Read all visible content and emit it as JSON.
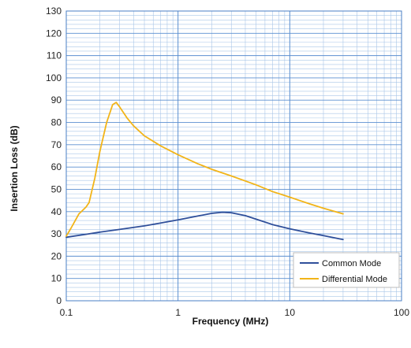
{
  "chart_data": {
    "type": "line",
    "title": "",
    "xlabel": "Frequency (MHz)",
    "ylabel": "Insertion Loss (dB)",
    "x_scale": "log",
    "xlim": [
      0.1,
      100
    ],
    "ylim": [
      0,
      130
    ],
    "x_ticks": [
      "0.1",
      "1",
      "10",
      "100"
    ],
    "y_ticks": [
      "0",
      "10",
      "20",
      "30",
      "40",
      "50",
      "60",
      "70",
      "80",
      "90",
      "100",
      "110",
      "120",
      "130"
    ],
    "grid": true,
    "legend_position": "bottom-right",
    "colors": {
      "grid_major": "#5b8fd0",
      "grid_minor": "#a9c6e8"
    },
    "series": [
      {
        "name": "Common Mode",
        "color": "#2f4f9a",
        "points": [
          [
            0.1,
            28.5
          ],
          [
            0.15,
            29.8
          ],
          [
            0.2,
            30.8
          ],
          [
            0.3,
            32.0
          ],
          [
            0.5,
            33.6
          ],
          [
            0.7,
            34.9
          ],
          [
            1.0,
            36.3
          ],
          [
            1.5,
            38.0
          ],
          [
            2.0,
            39.2
          ],
          [
            2.5,
            39.7
          ],
          [
            3.0,
            39.5
          ],
          [
            4.0,
            38.2
          ],
          [
            5.0,
            36.6
          ],
          [
            7.0,
            34.2
          ],
          [
            10.0,
            32.3
          ],
          [
            15.0,
            30.4
          ],
          [
            20.0,
            29.2
          ],
          [
            30.0,
            27.5
          ]
        ]
      },
      {
        "name": "Differential Mode",
        "color": "#f2b418",
        "points": [
          [
            0.1,
            29.0
          ],
          [
            0.11,
            32.5
          ],
          [
            0.13,
            39.0
          ],
          [
            0.15,
            42.0
          ],
          [
            0.16,
            44.0
          ],
          [
            0.18,
            55.0
          ],
          [
            0.2,
            67.0
          ],
          [
            0.23,
            80.0
          ],
          [
            0.26,
            88.0
          ],
          [
            0.28,
            89.0
          ],
          [
            0.3,
            87.0
          ],
          [
            0.35,
            82.0
          ],
          [
            0.4,
            78.5
          ],
          [
            0.5,
            74.0
          ],
          [
            0.7,
            69.5
          ],
          [
            1.0,
            65.5
          ],
          [
            1.5,
            61.5
          ],
          [
            2.0,
            59.0
          ],
          [
            3.0,
            56.0
          ],
          [
            5.0,
            52.0
          ],
          [
            7.0,
            49.0
          ],
          [
            10.0,
            46.5
          ],
          [
            15.0,
            43.5
          ],
          [
            20.0,
            41.5
          ],
          [
            30.0,
            39.0
          ]
        ]
      }
    ]
  }
}
